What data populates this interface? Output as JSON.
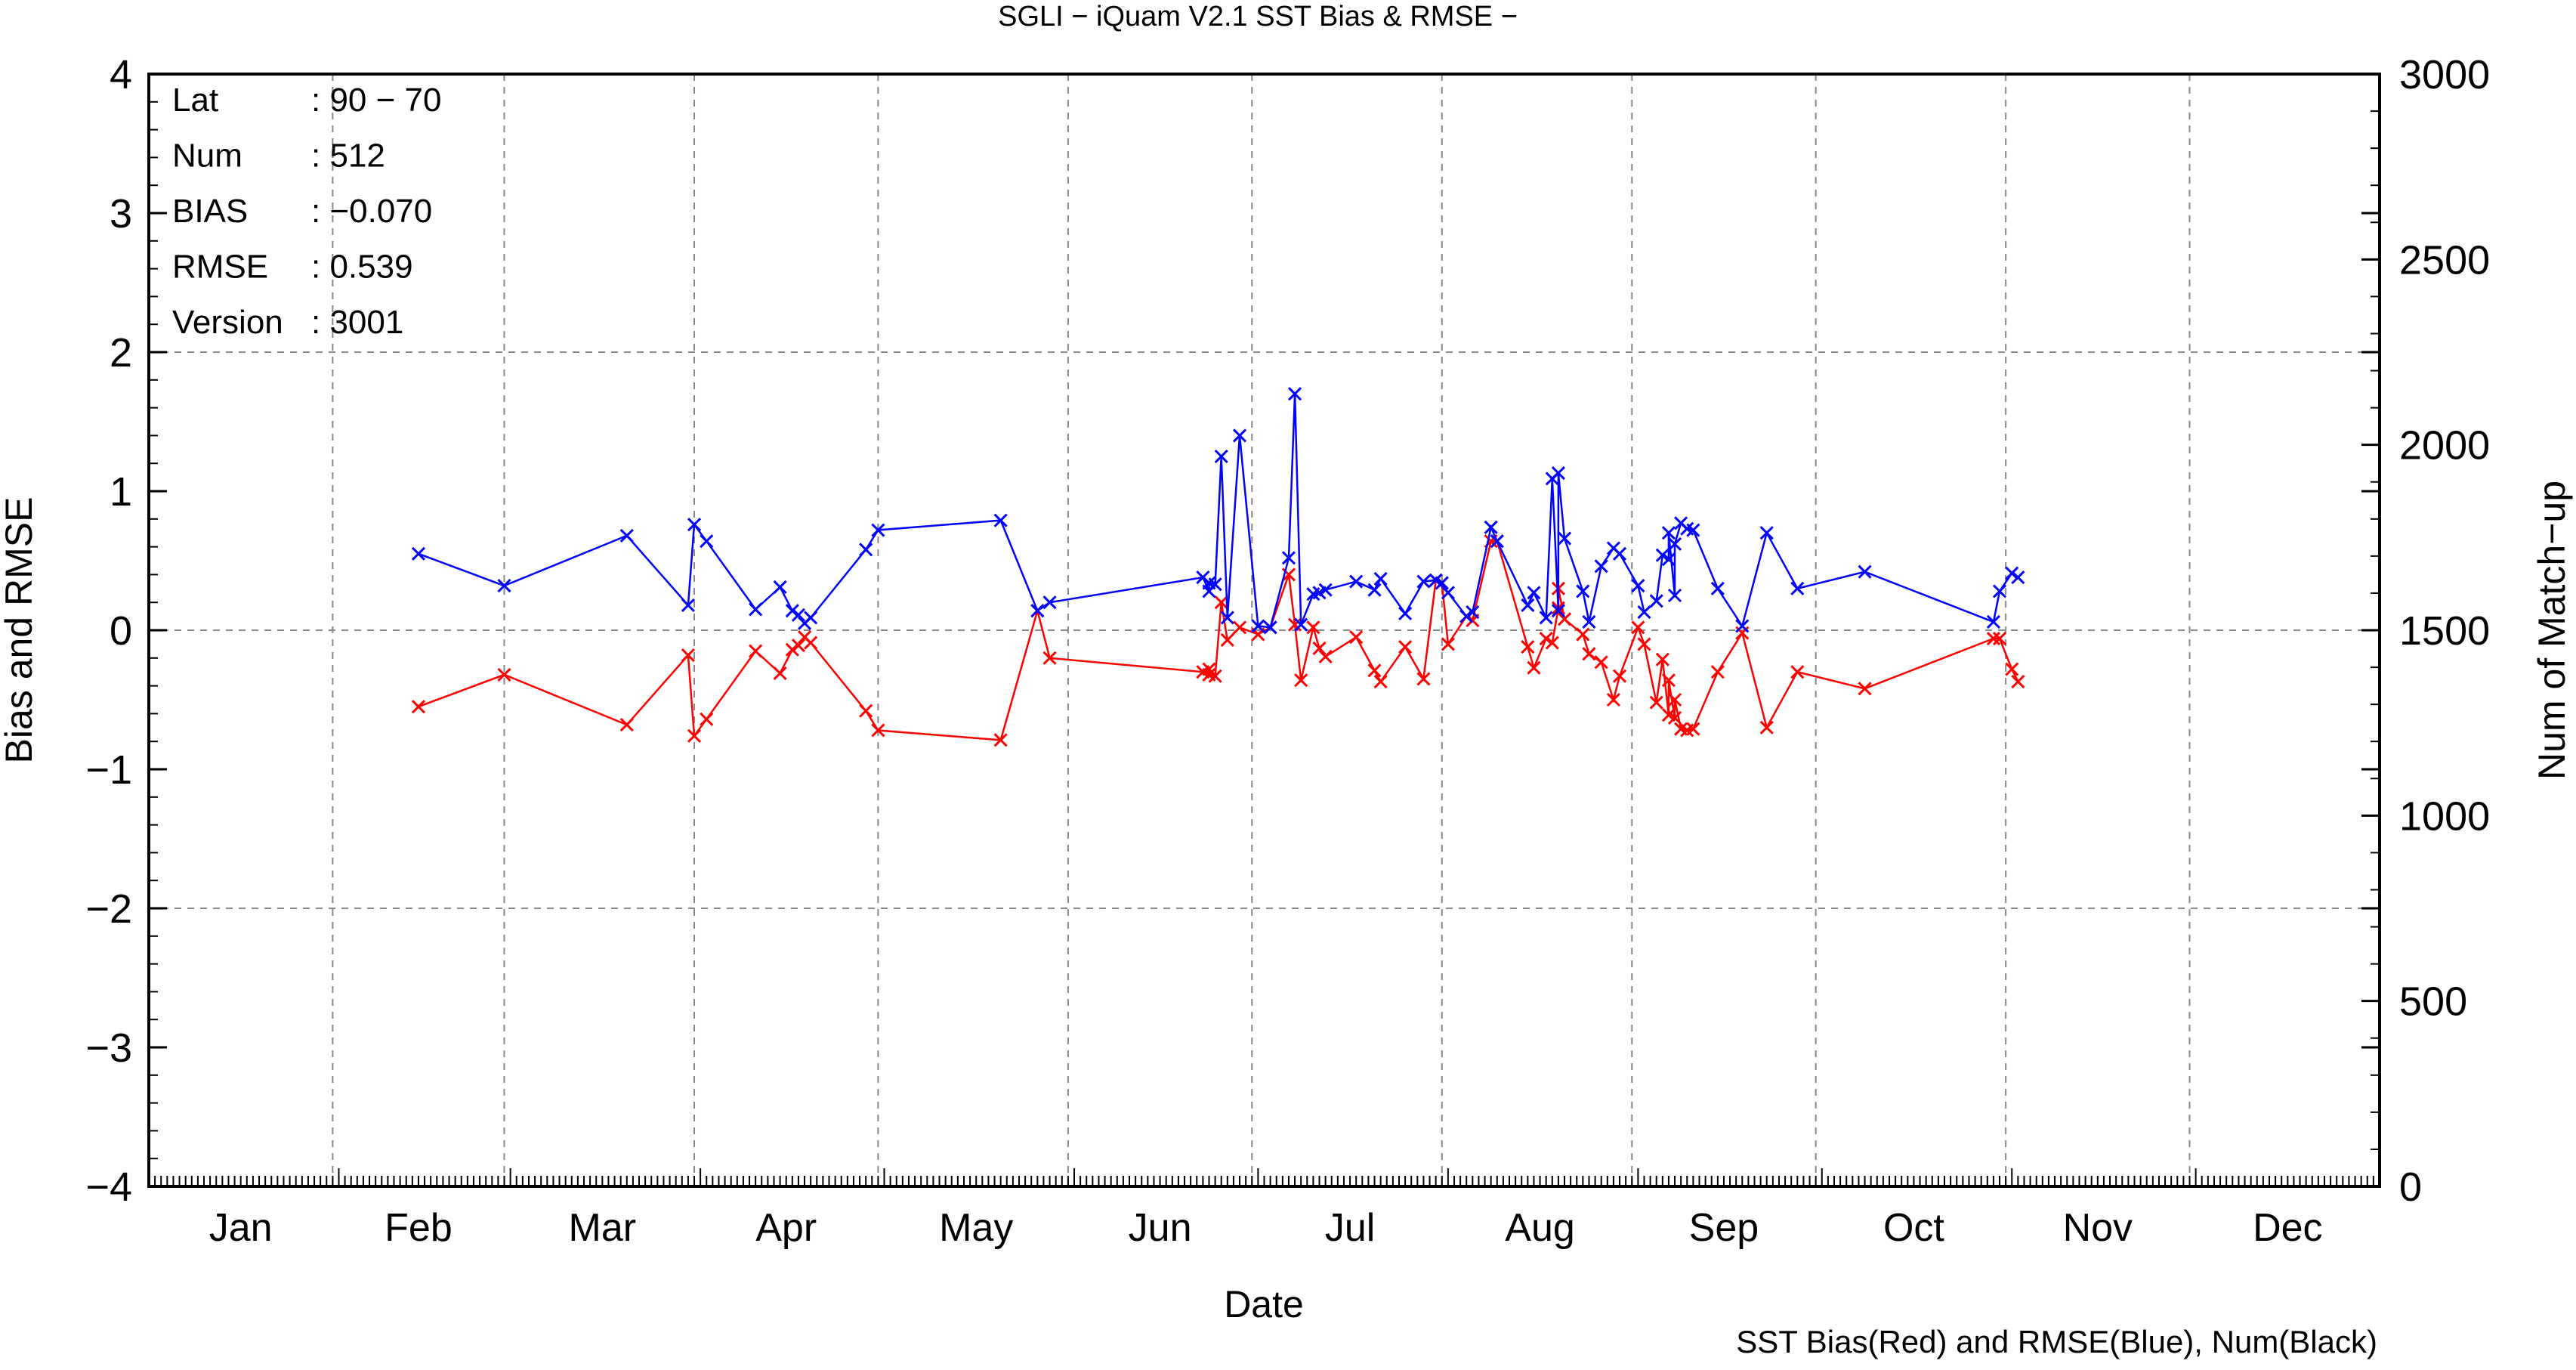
{
  "chart_data": {
    "type": "line",
    "title": "SGLI − iQuam V2.1 SST Bias & RMSE  −",
    "xlabel": "Date",
    "ylabel": "Bias and RMSE",
    "y2label": "Num of Match−up",
    "footer": "SST Bias(Red) and RMSE(Blue), Num(Black)",
    "x_domain": [
      "01-01",
      "12-31"
    ],
    "months": [
      "Jan",
      "Feb",
      "Mar",
      "Apr",
      "May",
      "Jun",
      "Jul",
      "Aug",
      "Sep",
      "Oct",
      "Nov",
      "Dec"
    ],
    "month_label_dates": [
      "01-16",
      "02-14",
      "03-16",
      "04-15",
      "05-16",
      "06-15",
      "07-16",
      "08-16",
      "09-15",
      "10-16",
      "11-15",
      "12-16"
    ],
    "grid_dates": [
      "01-31",
      "02-28",
      "03-31",
      "04-30",
      "05-31",
      "06-30",
      "07-31",
      "08-31",
      "09-30",
      "10-31",
      "11-30"
    ],
    "ylim": [
      -4,
      4
    ],
    "y_ticks": [
      "4",
      "3",
      "2",
      "1",
      "0",
      "−1",
      "−2",
      "−3",
      "−4"
    ],
    "y_tick_values": [
      4,
      3,
      2,
      1,
      0,
      -1,
      -2,
      -3,
      -4
    ],
    "y2lim": [
      0,
      3000
    ],
    "y2_ticks": [
      "3000",
      "2500",
      "2000",
      "1500",
      "1000",
      "500",
      "0"
    ],
    "y2_tick_values": [
      3000,
      2500,
      2000,
      1500,
      1000,
      500,
      0
    ],
    "grid": true,
    "stats": [
      {
        "key": "Lat",
        "value": ": 90 − 70"
      },
      {
        "key": "Num",
        "value": ": 512"
      },
      {
        "key": "BIAS",
        "value": ": −0.070"
      },
      {
        "key": "RMSE",
        "value": ": 0.539"
      },
      {
        "key": "Version",
        "value": ": 3001"
      }
    ],
    "series": [
      {
        "name": "SST Bias",
        "color": "#ff0000",
        "x": [
          "02-14",
          "02-28",
          "03-20",
          "03-30",
          "03-31",
          "04-02",
          "04-10",
          "04-14",
          "04-16",
          "04-17",
          "04-18",
          "04-19",
          "04-28",
          "04-30",
          "05-20",
          "05-26",
          "05-28",
          "06-22",
          "06-23",
          "06-23",
          "06-24",
          "06-25",
          "06-26",
          "06-28",
          "07-01",
          "07-03",
          "07-06",
          "07-07",
          "07-08",
          "07-10",
          "07-11",
          "07-12",
          "07-17",
          "07-20",
          "07-21",
          "07-25",
          "07-28",
          "07-30",
          "07-31",
          "08-01",
          "08-04",
          "08-05",
          "08-08",
          "08-09",
          "08-14",
          "08-15",
          "08-17",
          "08-18",
          "08-19",
          "08-19",
          "08-20",
          "08-23",
          "08-24",
          "08-26",
          "08-28",
          "08-29",
          "09-01",
          "09-02",
          "09-04",
          "09-05",
          "09-06",
          "09-06",
          "09-07",
          "09-07",
          "09-08",
          "09-09",
          "09-10",
          "09-14",
          "09-18",
          "09-22",
          "09-27",
          "10-08",
          "10-29",
          "10-30",
          "11-01",
          "11-02"
        ],
        "y": [
          -0.55,
          -0.32,
          -0.68,
          -0.18,
          -0.76,
          -0.64,
          -0.15,
          -0.31,
          -0.14,
          -0.11,
          -0.05,
          -0.09,
          -0.58,
          -0.72,
          -0.79,
          0.14,
          -0.2,
          -0.3,
          -0.28,
          -0.32,
          -0.33,
          0.2,
          -0.07,
          0.02,
          -0.03,
          0.02,
          0.4,
          0.04,
          -0.36,
          0.02,
          -0.13,
          -0.19,
          -0.05,
          -0.29,
          -0.37,
          -0.12,
          -0.35,
          0.36,
          0.34,
          -0.1,
          0.1,
          0.07,
          0.64,
          0.64,
          -0.12,
          -0.27,
          -0.06,
          -0.09,
          0.16,
          0.3,
          0.08,
          -0.03,
          -0.17,
          -0.23,
          -0.5,
          -0.33,
          0.02,
          -0.1,
          -0.52,
          -0.21,
          -0.61,
          -0.36,
          -0.63,
          -0.5,
          -0.71,
          -0.72,
          -0.71,
          -0.3,
          -0.02,
          -0.7,
          -0.3,
          -0.42,
          -0.06,
          -0.06,
          -0.28,
          -0.37
        ]
      },
      {
        "name": "SST RMSE",
        "color": "#0000ff",
        "x": [
          "02-14",
          "02-28",
          "03-20",
          "03-30",
          "03-31",
          "04-02",
          "04-10",
          "04-14",
          "04-16",
          "04-17",
          "04-18",
          "04-19",
          "04-28",
          "04-30",
          "05-20",
          "05-26",
          "05-28",
          "06-22",
          "06-23",
          "06-23",
          "06-24",
          "06-25",
          "06-26",
          "06-28",
          "07-01",
          "07-03",
          "07-06",
          "07-07",
          "07-08",
          "07-10",
          "07-11",
          "07-12",
          "07-17",
          "07-20",
          "07-21",
          "07-25",
          "07-28",
          "07-30",
          "07-31",
          "08-01",
          "08-04",
          "08-05",
          "08-08",
          "08-09",
          "08-14",
          "08-15",
          "08-17",
          "08-18",
          "08-19",
          "08-19",
          "08-20",
          "08-23",
          "08-24",
          "08-26",
          "08-28",
          "08-29",
          "09-01",
          "09-02",
          "09-04",
          "09-05",
          "09-06",
          "09-06",
          "09-07",
          "09-07",
          "09-08",
          "09-09",
          "09-10",
          "09-14",
          "09-18",
          "09-22",
          "09-27",
          "10-08",
          "10-29",
          "10-30",
          "11-01",
          "11-02"
        ],
        "y": [
          0.55,
          0.32,
          0.68,
          0.18,
          0.76,
          0.64,
          0.15,
          0.31,
          0.14,
          0.11,
          0.05,
          0.09,
          0.58,
          0.72,
          0.79,
          0.14,
          0.2,
          0.38,
          0.28,
          0.34,
          0.33,
          1.25,
          0.09,
          1.4,
          0.03,
          0.02,
          0.52,
          1.7,
          0.04,
          0.26,
          0.27,
          0.29,
          0.35,
          0.29,
          0.37,
          0.12,
          0.35,
          0.36,
          0.34,
          0.27,
          0.1,
          0.13,
          0.74,
          0.64,
          0.18,
          0.27,
          0.09,
          1.09,
          0.14,
          1.13,
          0.66,
          0.28,
          0.06,
          0.46,
          0.59,
          0.55,
          0.32,
          0.13,
          0.21,
          0.54,
          0.51,
          0.7,
          0.25,
          0.62,
          0.77,
          0.73,
          0.72,
          0.3,
          0.03,
          0.7,
          0.3,
          0.42,
          0.06,
          0.28,
          0.41,
          0.38
        ]
      }
    ]
  }
}
